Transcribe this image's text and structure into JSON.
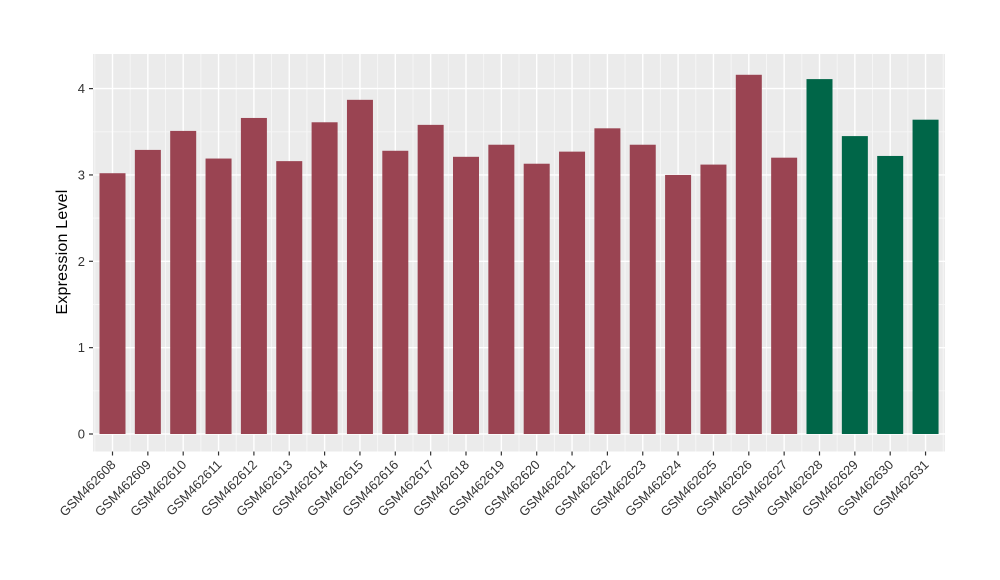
{
  "chart_data": {
    "type": "bar",
    "title": "",
    "xlabel": "",
    "ylabel": "Expression Level",
    "categories": [
      "GSM462608",
      "GSM462609",
      "GSM462610",
      "GSM462611",
      "GSM462612",
      "GSM462613",
      "GSM462614",
      "GSM462615",
      "GSM462616",
      "GSM462617",
      "GSM462618",
      "GSM462619",
      "GSM462620",
      "GSM462621",
      "GSM462622",
      "GSM462623",
      "GSM462624",
      "GSM462625",
      "GSM462626",
      "GSM462627",
      "GSM462628",
      "GSM462629",
      "GSM462630",
      "GSM462631"
    ],
    "values": [
      3.02,
      3.29,
      3.51,
      3.19,
      3.66,
      3.16,
      3.61,
      3.87,
      3.28,
      3.58,
      3.21,
      3.35,
      3.13,
      3.27,
      3.54,
      3.35,
      3.0,
      3.12,
      4.16,
      3.2,
      4.11,
      3.45,
      3.22,
      3.64
    ],
    "bar_groups": [
      "maroon",
      "maroon",
      "maroon",
      "maroon",
      "maroon",
      "maroon",
      "maroon",
      "maroon",
      "maroon",
      "maroon",
      "maroon",
      "maroon",
      "maroon",
      "maroon",
      "maroon",
      "maroon",
      "maroon",
      "maroon",
      "maroon",
      "maroon",
      "green",
      "green",
      "green",
      "green"
    ],
    "group_colors": {
      "maroon": "#9A4452",
      "green": "#006648"
    },
    "yticks": [
      0,
      1,
      2,
      3,
      4
    ],
    "ylim": [
      0,
      4.38
    ],
    "grid": true,
    "legend": false,
    "panel_background": "#EBEBEB",
    "grid_major_color": "#FFFFFF",
    "grid_minor_color": "#F7F7F7",
    "tick_mark_color": "#333333",
    "tick_label_color": "#333333",
    "axis_title_color": "#000000"
  }
}
